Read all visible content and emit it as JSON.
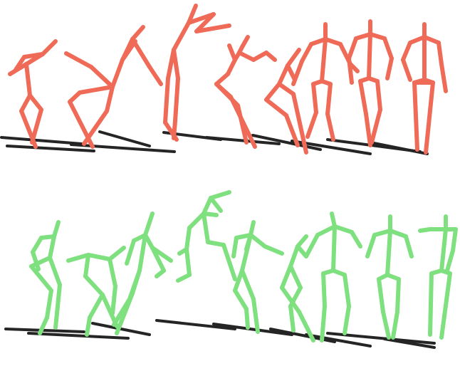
{
  "figure": {
    "rows": [
      {
        "name": "top-row",
        "color": "#f06a58",
        "shadow_color": "#1a1a1a",
        "frame_count": 9
      },
      {
        "name": "bottom-row",
        "color": "#7ee07e",
        "shadow_color": "#1a1a1a",
        "frame_count": 9
      }
    ]
  }
}
